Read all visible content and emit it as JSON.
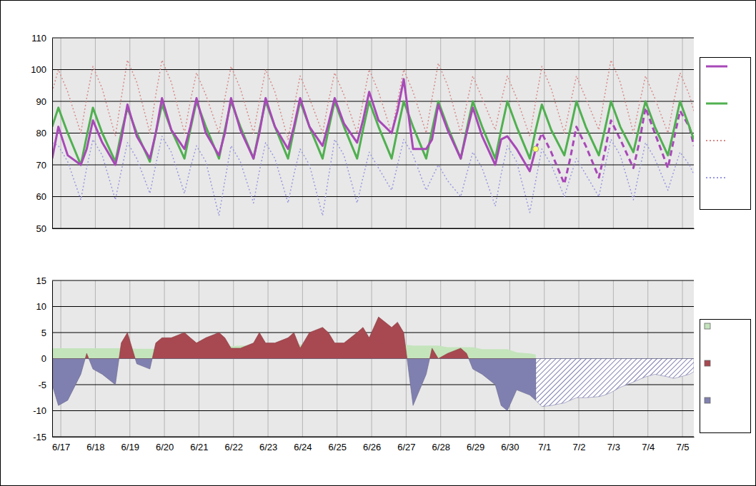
{
  "chart_data": [
    {
      "type": "line",
      "x": [
        -0.25,
        -0.07,
        0.2,
        0.58,
        0.75,
        0.93,
        1.2,
        1.58,
        1.75,
        1.93,
        2.2,
        2.58,
        2.75,
        2.93,
        3.2,
        3.58,
        3.75,
        3.93,
        4.2,
        4.58,
        4.75,
        4.93,
        5.2,
        5.58,
        5.75,
        5.93,
        6.2,
        6.58,
        6.75,
        6.93,
        7.2,
        7.58,
        7.75,
        7.93,
        8.2,
        8.58,
        8.75,
        8.93,
        9.2,
        9.58,
        9.75,
        9.93,
        10.2,
        10.58,
        10.75,
        10.93,
        11.2,
        11.58,
        11.75,
        11.93,
        12.2,
        12.58,
        12.75,
        12.93,
        13.2,
        13.58,
        13.75,
        13.93,
        14.2,
        14.58,
        14.75,
        14.93,
        15.2,
        15.58,
        15.75,
        15.93,
        16.2,
        16.58,
        16.75,
        16.93,
        17.2,
        17.58,
        17.75,
        17.93,
        18.2,
        18.33
      ],
      "series": [
        {
          "type": "line",
          "color": "#a848b8",
          "values": [
            72,
            82,
            73,
            70,
            75,
            84,
            77,
            70,
            78,
            89,
            79,
            72,
            80,
            91,
            81,
            75,
            82,
            91,
            80,
            73,
            80,
            91,
            81,
            72,
            80,
            91,
            82,
            75,
            82,
            91,
            82,
            76,
            83,
            91,
            83,
            77,
            84,
            93,
            84,
            80,
            87,
            97,
            75,
            75,
            78,
            89,
            81,
            72,
            80,
            88,
            79,
            70,
            78,
            79,
            75,
            68,
            75,
            null,
            null,
            null,
            null,
            null,
            null,
            null,
            null,
            null,
            null,
            null,
            null,
            null,
            null,
            null,
            null,
            null,
            null,
            null
          ]
        },
        {
          "type": "line",
          "color": "#50b050",
          "values": [
            82,
            88,
            80,
            70,
            79,
            88,
            80,
            71,
            80,
            88,
            80,
            71,
            80,
            89,
            81,
            72,
            81,
            90,
            82,
            72,
            81,
            90,
            82,
            72,
            81,
            90,
            82,
            72,
            81,
            90,
            82,
            72,
            81,
            90,
            82,
            72,
            81,
            90,
            82,
            72,
            81,
            90,
            82,
            72,
            81,
            90,
            82,
            72,
            81,
            90,
            82,
            72,
            81,
            90,
            82,
            72,
            81,
            89,
            81,
            73,
            81,
            90,
            82,
            73,
            81,
            90,
            82,
            74,
            82,
            90,
            82,
            73,
            81,
            90,
            82,
            78
          ]
        },
        {
          "type": "line",
          "color": "#d88a8a",
          "line_style": "dotted",
          "values": [
            93,
            100,
            93,
            80,
            91,
            101,
            94,
            79,
            91,
            103,
            96,
            80,
            92,
            103,
            96,
            80,
            90,
            99,
            92,
            80,
            91,
            101,
            94,
            80,
            90,
            100,
            93,
            78,
            88,
            98,
            91,
            80,
            90,
            99,
            92,
            80,
            90,
            100,
            93,
            80,
            90,
            100,
            93,
            80,
            91,
            102,
            95,
            80,
            89,
            98,
            91,
            81,
            90,
            98,
            91,
            79,
            90,
            101,
            94,
            80,
            89,
            98,
            91,
            81,
            92,
            103,
            96,
            80,
            89,
            98,
            91,
            80,
            90,
            99,
            92,
            87
          ]
        },
        {
          "type": "line",
          "color": "#9898e0",
          "line_style": "dotted",
          "values": [
            77,
            76,
            71,
            59,
            69,
            78,
            73,
            59,
            68,
            77,
            72,
            61,
            70,
            79,
            74,
            61,
            69,
            76,
            71,
            54,
            65,
            76,
            71,
            58,
            68,
            77,
            72,
            58,
            67,
            75,
            70,
            54,
            66,
            78,
            73,
            58,
            66,
            74,
            69,
            62,
            70,
            78,
            73,
            62,
            66,
            70,
            65,
            60,
            67,
            74,
            69,
            57,
            67,
            76,
            71,
            55,
            65,
            75,
            70,
            60,
            66,
            72,
            67,
            60,
            69,
            78,
            73,
            59,
            68,
            77,
            72,
            62,
            68,
            74,
            70,
            67
          ]
        },
        {
          "type": "line",
          "color": "#a848b8",
          "line_style": "dashed",
          "values": [
            null,
            null,
            null,
            null,
            null,
            null,
            null,
            null,
            null,
            null,
            null,
            null,
            null,
            null,
            null,
            null,
            null,
            null,
            null,
            null,
            null,
            null,
            null,
            null,
            null,
            null,
            null,
            null,
            null,
            null,
            null,
            null,
            null,
            null,
            null,
            null,
            null,
            null,
            null,
            null,
            null,
            null,
            null,
            null,
            null,
            null,
            null,
            null,
            null,
            null,
            null,
            null,
            null,
            null,
            null,
            null,
            75,
            80,
            74,
            64,
            72,
            82,
            76,
            66,
            74,
            84,
            78,
            69,
            77,
            88,
            80,
            69,
            78,
            87,
            82,
            76
          ]
        },
        {
          "type": "scatter",
          "color": "#ffff66",
          "marker": "circle",
          "values": [
            null,
            null,
            null,
            null,
            null,
            null,
            null,
            null,
            null,
            null,
            null,
            null,
            null,
            null,
            null,
            null,
            null,
            null,
            null,
            null,
            null,
            null,
            null,
            null,
            null,
            null,
            null,
            null,
            null,
            null,
            null,
            null,
            null,
            null,
            null,
            null,
            null,
            null,
            null,
            null,
            null,
            null,
            null,
            null,
            null,
            null,
            null,
            null,
            null,
            null,
            null,
            null,
            null,
            null,
            null,
            null,
            75,
            null,
            null,
            null,
            null,
            null,
            null,
            null,
            null,
            null,
            null,
            null,
            null,
            null,
            null,
            null,
            null,
            null,
            null,
            null
          ]
        }
      ],
      "xlim": [
        -0.25,
        18.33
      ],
      "xticks": [
        0,
        1,
        2,
        3,
        4,
        5,
        6,
        7,
        8,
        9,
        10,
        11,
        12,
        13,
        14,
        15,
        16,
        17,
        18
      ],
      "ylim": [
        50,
        110
      ],
      "yticks": [
        50,
        60,
        70,
        80,
        90,
        100,
        110
      ],
      "grid": true,
      "tick_labels": "y"
    },
    {
      "type": "area",
      "x": [
        -0.25,
        -0.07,
        0.2,
        0.58,
        0.75,
        0.93,
        1.2,
        1.58,
        1.75,
        1.93,
        2.2,
        2.58,
        2.75,
        2.93,
        3.2,
        3.58,
        3.75,
        3.93,
        4.2,
        4.58,
        4.75,
        4.93,
        5.2,
        5.58,
        5.75,
        5.93,
        6.2,
        6.58,
        6.75,
        6.93,
        7.2,
        7.58,
        7.75,
        7.93,
        8.2,
        8.58,
        8.75,
        8.93,
        9.2,
        9.58,
        9.75,
        9.93,
        10.2,
        10.58,
        10.75,
        10.93,
        11.2,
        11.58,
        11.75,
        11.93,
        12.2,
        12.58,
        12.75,
        12.93,
        13.2,
        13.58,
        13.75,
        13.93,
        14.2,
        14.58,
        14.75,
        14.93,
        15.2,
        15.58,
        15.75,
        15.93,
        16.2,
        16.58,
        16.75,
        16.93,
        17.2,
        17.58,
        17.75,
        17.93,
        18.2,
        18.33
      ],
      "series": [
        {
          "type": "area",
          "color": "#c4e4bc",
          "values": [
            2.0,
            2.0,
            2.0,
            2.0,
            2.0,
            2.0,
            2.0,
            2.0,
            2.0,
            2.0,
            1.9,
            1.9,
            1.9,
            1.9,
            2.2,
            2.2,
            2.2,
            2.2,
            2.4,
            2.4,
            2.4,
            2.4,
            2.5,
            2.5,
            2.5,
            2.5,
            2.7,
            2.7,
            2.7,
            2.7,
            2.8,
            2.8,
            2.8,
            2.8,
            2.8,
            2.8,
            2.8,
            2.8,
            2.7,
            2.7,
            2.7,
            2.7,
            2.5,
            2.5,
            2.5,
            2.5,
            2.2,
            2.2,
            2.2,
            2.2,
            1.8,
            1.8,
            1.8,
            1.8,
            1.2,
            1.0,
            0.8,
            null,
            null,
            null,
            null,
            null,
            null,
            null,
            null,
            null,
            null,
            null,
            null,
            null,
            null,
            null,
            null,
            null,
            null,
            null
          ]
        },
        {
          "type": "area",
          "colors": [
            "#a84850",
            "#8080b0"
          ],
          "values": [
            -5,
            -9,
            -8,
            -3,
            1,
            -2,
            -3,
            -5,
            3,
            5,
            -1,
            -2,
            3,
            4,
            4,
            5,
            4,
            3,
            4,
            5,
            4,
            2,
            2,
            3,
            5,
            3,
            3,
            4,
            5,
            2,
            5,
            6,
            5,
            3,
            3,
            5,
            6,
            4,
            8,
            6,
            7,
            5,
            -9,
            -3,
            2,
            0,
            1,
            2,
            1,
            -2,
            -3,
            -5,
            -9,
            -10,
            -6,
            -7,
            -8,
            null,
            null,
            null,
            null,
            null,
            null,
            null,
            null,
            null,
            null,
            null,
            null,
            null,
            null,
            null,
            null,
            null,
            null,
            null
          ]
        },
        {
          "type": "area",
          "color": "#8080b0",
          "line_style": "hatched",
          "values": [
            null,
            null,
            null,
            null,
            null,
            null,
            null,
            null,
            null,
            null,
            null,
            null,
            null,
            null,
            null,
            null,
            null,
            null,
            null,
            null,
            null,
            null,
            null,
            null,
            null,
            null,
            null,
            null,
            null,
            null,
            null,
            null,
            null,
            null,
            null,
            null,
            null,
            null,
            null,
            null,
            null,
            null,
            null,
            null,
            null,
            null,
            null,
            null,
            null,
            null,
            null,
            null,
            null,
            null,
            null,
            null,
            -8,
            -9.2,
            -9,
            -8.5,
            -8,
            -7.5,
            -7.5,
            -7.3,
            -7,
            -6.5,
            -5.5,
            -4.5,
            -4,
            -3.5,
            -3,
            -3.5,
            -3.8,
            -3.5,
            -3,
            -2.5
          ]
        }
      ],
      "xlim": [
        -0.25,
        18.33
      ],
      "xticks": [
        {
          "value": 0,
          "label": "6/17"
        },
        {
          "value": 1,
          "label": "6/18"
        },
        {
          "value": 2,
          "label": "6/19"
        },
        {
          "value": 3,
          "label": "6/20"
        },
        {
          "value": 4,
          "label": "6/21"
        },
        {
          "value": 5,
          "label": "6/22"
        },
        {
          "value": 6,
          "label": "6/23"
        },
        {
          "value": 7,
          "label": "6/24"
        },
        {
          "value": 8,
          "label": "6/25"
        },
        {
          "value": 9,
          "label": "6/26"
        },
        {
          "value": 10,
          "label": "6/27"
        },
        {
          "value": 11,
          "label": "6/28"
        },
        {
          "value": 12,
          "label": "6/29"
        },
        {
          "value": 13,
          "label": "6/30"
        },
        {
          "value": 14,
          "label": "7/1"
        },
        {
          "value": 15,
          "label": "7/2"
        },
        {
          "value": 16,
          "label": "7/3"
        },
        {
          "value": 17,
          "label": "7/4"
        },
        {
          "value": 18,
          "label": "7/5"
        }
      ],
      "ylim": [
        -15,
        15
      ],
      "yticks": [
        -15,
        -10,
        -5,
        0,
        5,
        10,
        15
      ],
      "grid": true
    }
  ]
}
